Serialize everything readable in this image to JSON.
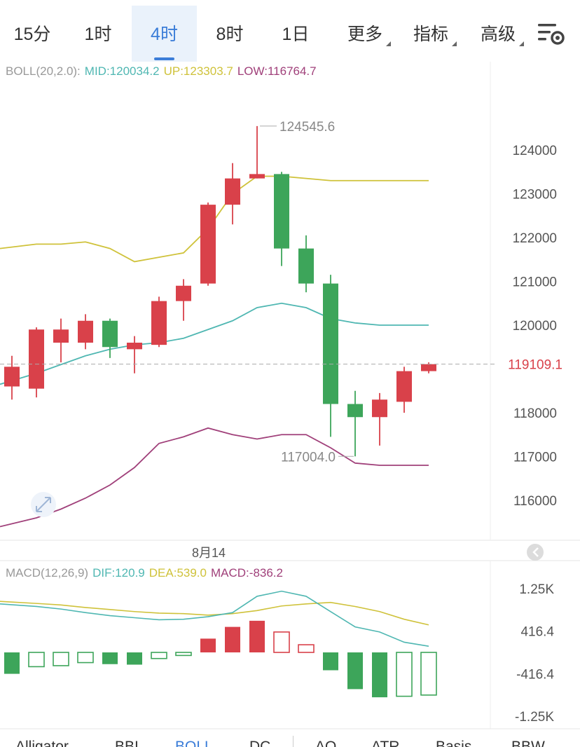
{
  "tabs": [
    {
      "label": "15分",
      "active": false,
      "dropdown": false
    },
    {
      "label": "1时",
      "active": false,
      "dropdown": false
    },
    {
      "label": "4时",
      "active": true,
      "dropdown": false
    },
    {
      "label": "8时",
      "active": false,
      "dropdown": false
    },
    {
      "label": "1日",
      "active": false,
      "dropdown": false
    },
    {
      "label": "更多",
      "active": false,
      "dropdown": true
    },
    {
      "label": "指标",
      "active": false,
      "dropdown": true
    },
    {
      "label": "高级",
      "active": false,
      "dropdown": true
    }
  ],
  "toolbar": {
    "settings_icon": "chart-settings-icon"
  },
  "boll_legend": {
    "name": "BOLL(20,2.0):",
    "mid": "MID:120034.2",
    "up": "UP:123303.7",
    "low": "LOW:116764.7"
  },
  "macd_legend": {
    "name": "MACD(12,26,9)",
    "dif": "DIF:120.9",
    "dea": "DEA:539.0",
    "macd": "MACD:-836.2"
  },
  "colors": {
    "up": "#d9414a",
    "down": "#3da55a",
    "mid_line": "#4fb7b2",
    "upper_line": "#cfc23a",
    "lower_line": "#a0407a",
    "blue": "#3b7dd8",
    "grid": "#eeeeee"
  },
  "chart_data": [
    {
      "type": "candlestick",
      "ylim": [
        115500,
        125500
      ],
      "y_ticks": [
        "124000",
        "123000",
        "122000",
        "121000",
        "120000",
        "118000",
        "117000",
        "116000"
      ],
      "y_tick_values": [
        124000,
        123000,
        122000,
        121000,
        120000,
        118000,
        117000,
        116000
      ],
      "x_label": "8月14",
      "current_price": "119109.1",
      "current_price_value": 119109.1,
      "high_annotation": {
        "label": "124545.6",
        "value": 124545.6,
        "index": 10
      },
      "low_annotation": {
        "label": "117004.0",
        "value": 117004.0,
        "index": 14
      },
      "candles": [
        {
          "open": 118600,
          "high": 119300,
          "low": 118300,
          "close": 119050
        },
        {
          "open": 118550,
          "high": 119950,
          "low": 118350,
          "close": 119900
        },
        {
          "open": 119600,
          "high": 120150,
          "low": 119150,
          "close": 119900
        },
        {
          "open": 119600,
          "high": 120250,
          "low": 119450,
          "close": 120100
        },
        {
          "open": 120100,
          "high": 120150,
          "low": 119250,
          "close": 119500
        },
        {
          "open": 119450,
          "high": 119750,
          "low": 118900,
          "close": 119600
        },
        {
          "open": 119550,
          "high": 120650,
          "low": 119500,
          "close": 120550
        },
        {
          "open": 120550,
          "high": 121050,
          "low": 120100,
          "close": 120900
        },
        {
          "open": 120950,
          "high": 122800,
          "low": 120900,
          "close": 122750
        },
        {
          "open": 122750,
          "high": 123700,
          "low": 122300,
          "close": 123350
        },
        {
          "open": 123350,
          "high": 124545.6,
          "low": 123350,
          "close": 123450
        },
        {
          "open": 123450,
          "high": 123500,
          "low": 121350,
          "close": 121750
        },
        {
          "open": 121750,
          "high": 122050,
          "low": 120750,
          "close": 120950
        },
        {
          "open": 120950,
          "high": 121150,
          "low": 117450,
          "close": 118200
        },
        {
          "open": 118200,
          "high": 118500,
          "low": 117004,
          "close": 117900
        },
        {
          "open": 117900,
          "high": 118450,
          "low": 117250,
          "close": 118300
        },
        {
          "open": 118250,
          "high": 119050,
          "low": 118000,
          "close": 118950
        },
        {
          "open": 118950,
          "high": 119150,
          "low": 118900,
          "close": 119109.1
        }
      ],
      "boll_upper": [
        121750,
        121850,
        121850,
        121900,
        121750,
        121450,
        121550,
        121650,
        122200,
        123000,
        123400,
        123400,
        123350,
        123300,
        123300,
        123300,
        123300,
        123300
      ],
      "boll_mid": [
        118650,
        118900,
        119100,
        119300,
        119450,
        119550,
        119600,
        119700,
        119900,
        120100,
        120400,
        120500,
        120400,
        120150,
        120050,
        120000,
        120000,
        120000
      ],
      "boll_lower": [
        115400,
        115600,
        115800,
        116050,
        116350,
        116750,
        117300,
        117450,
        117650,
        117500,
        117400,
        117500,
        117500,
        117200,
        116850,
        116800,
        116800,
        116800
      ]
    },
    {
      "type": "bar",
      "ylim": [
        -1250,
        1250
      ],
      "y_ticks": [
        "1.25K",
        "416.4",
        "-416.4",
        "-1.25K"
      ],
      "y_tick_values": [
        1250,
        416.4,
        -416.4,
        -1250
      ],
      "histogram": [
        -420,
        -280,
        -260,
        -200,
        -230,
        -240,
        -120,
        -60,
        270,
        500,
        620,
        400,
        150,
        -350,
        -720,
        -880,
        -860,
        -836.2
      ],
      "dif": [
        950,
        900,
        850,
        780,
        720,
        680,
        640,
        650,
        700,
        780,
        1100,
        1200,
        1100,
        800,
        500,
        400,
        200,
        120.9
      ],
      "dea": [
        1000,
        960,
        930,
        880,
        840,
        800,
        770,
        760,
        730,
        760,
        820,
        910,
        950,
        980,
        900,
        800,
        650,
        539.0
      ]
    }
  ],
  "bottom_tabs": [
    {
      "label": "Alligator",
      "active": false
    },
    {
      "label": "BBI",
      "active": false
    },
    {
      "label": "BOLL",
      "active": true
    },
    {
      "label": "DC",
      "active": false
    },
    {
      "label": "AO",
      "active": false
    },
    {
      "label": "ATR",
      "active": false
    },
    {
      "label": "Basis",
      "active": false
    },
    {
      "label": "BBW",
      "active": false
    }
  ]
}
